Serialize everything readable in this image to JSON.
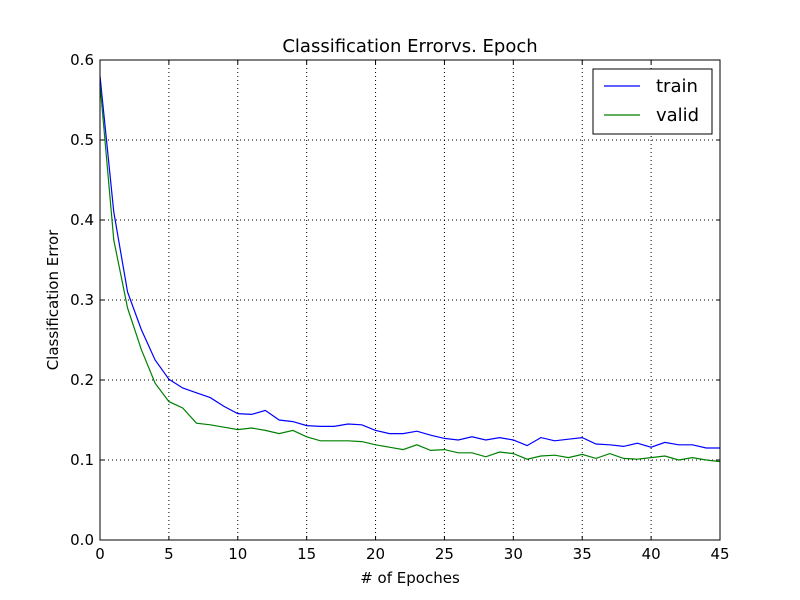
{
  "chart_data": {
    "type": "line",
    "title": "Classification Errorvs. Epoch",
    "xlabel": "# of Epoches",
    "ylabel": "Classification Error",
    "xlim": [
      0,
      45
    ],
    "ylim": [
      0.0,
      0.6
    ],
    "xticks": [
      0,
      5,
      10,
      15,
      20,
      25,
      30,
      35,
      40,
      45
    ],
    "yticks": [
      0.0,
      0.1,
      0.2,
      0.3,
      0.4,
      0.5,
      0.6
    ],
    "xtick_labels": [
      "0",
      "5",
      "10",
      "15",
      "20",
      "25",
      "30",
      "35",
      "40",
      "45"
    ],
    "ytick_labels": [
      "0.0",
      "0.1",
      "0.2",
      "0.3",
      "0.4",
      "0.5",
      "0.6"
    ],
    "grid": true,
    "legend": "top-right",
    "x": [
      0,
      1,
      2,
      3,
      4,
      5,
      6,
      7,
      8,
      9,
      10,
      11,
      12,
      13,
      14,
      15,
      16,
      17,
      18,
      19,
      20,
      21,
      22,
      23,
      24,
      25,
      26,
      27,
      28,
      29,
      30,
      31,
      32,
      33,
      34,
      35,
      36,
      37,
      38,
      39,
      40,
      41,
      42,
      43,
      44,
      45
    ],
    "series": [
      {
        "name": "train",
        "color": "#0000ff",
        "values": [
          0.58,
          0.41,
          0.31,
          0.263,
          0.225,
          0.201,
          0.19,
          0.184,
          0.178,
          0.167,
          0.158,
          0.157,
          0.162,
          0.15,
          0.148,
          0.143,
          0.142,
          0.142,
          0.145,
          0.144,
          0.137,
          0.133,
          0.133,
          0.136,
          0.131,
          0.127,
          0.125,
          0.129,
          0.125,
          0.128,
          0.125,
          0.118,
          0.128,
          0.124,
          0.126,
          0.128,
          0.12,
          0.119,
          0.117,
          0.121,
          0.116,
          0.122,
          0.119,
          0.119,
          0.115,
          0.115
        ]
      },
      {
        "name": "valid",
        "color": "#008000",
        "values": [
          0.57,
          0.375,
          0.29,
          0.238,
          0.196,
          0.173,
          0.165,
          0.146,
          0.144,
          0.141,
          0.138,
          0.14,
          0.137,
          0.133,
          0.137,
          0.129,
          0.124,
          0.124,
          0.124,
          0.123,
          0.119,
          0.116,
          0.113,
          0.119,
          0.112,
          0.113,
          0.109,
          0.109,
          0.104,
          0.11,
          0.108,
          0.101,
          0.105,
          0.106,
          0.103,
          0.107,
          0.102,
          0.108,
          0.102,
          0.101,
          0.103,
          0.105,
          0.1,
          0.103,
          0.1,
          0.098
        ]
      }
    ]
  }
}
